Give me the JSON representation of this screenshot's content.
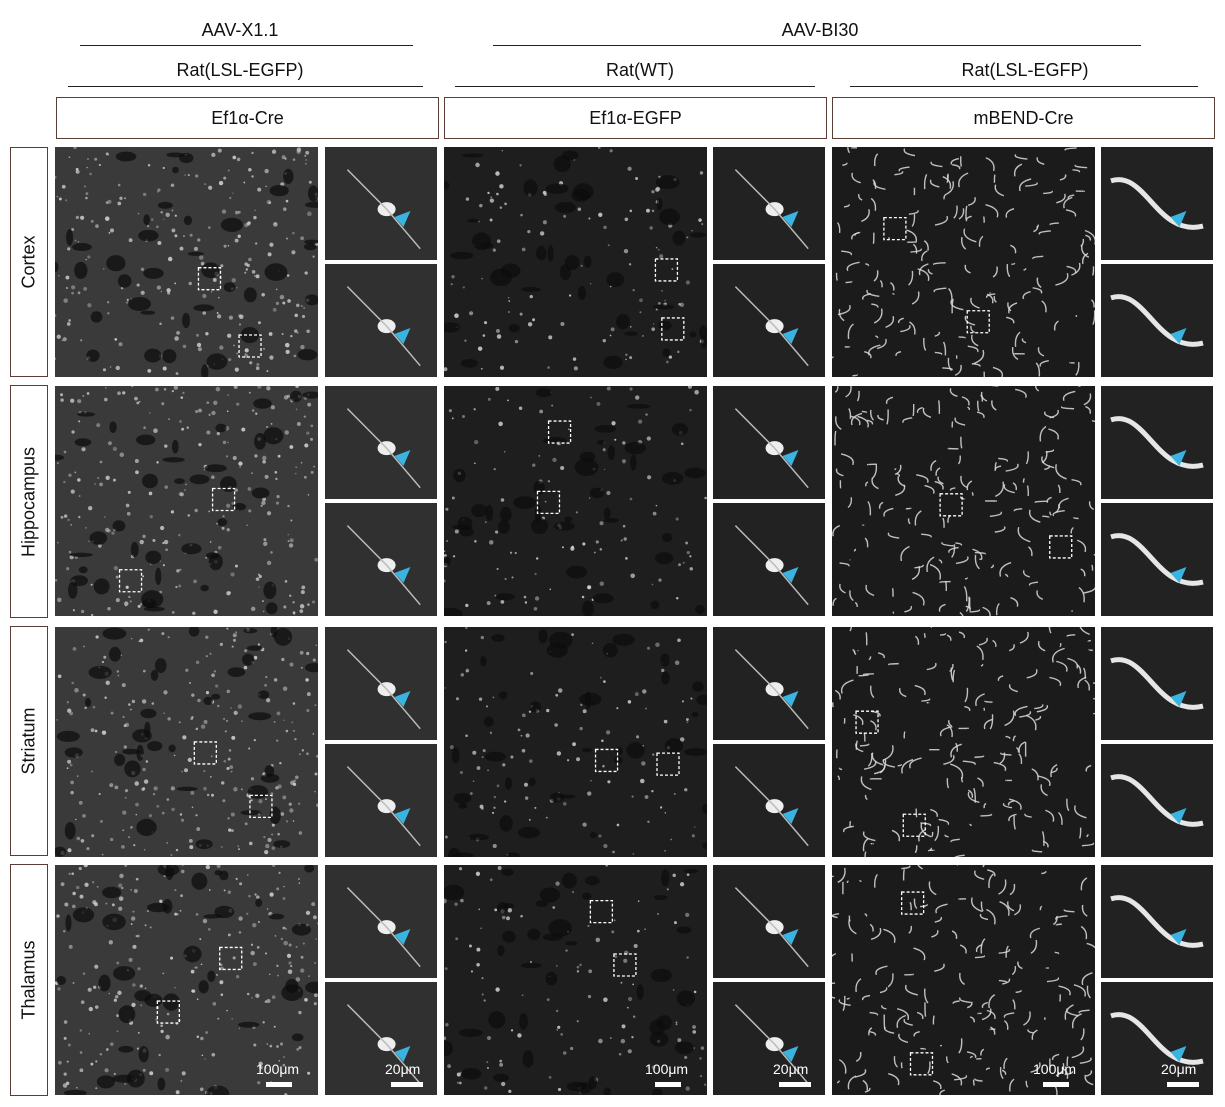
{
  "header": {
    "virus_left": "AAV-X1.1",
    "virus_right": "AAV-BI30",
    "strain_1": "Rat(LSL-EGFP)",
    "strain_2": "Rat(WT)",
    "strain_3": "Rat(LSL-EGFP)",
    "construct_1": "Ef1α-Cre",
    "construct_2": "Ef1α-EGFP",
    "construct_3": "mBEND-Cre"
  },
  "rows": [
    "Cortex",
    "Hippocampus",
    "Striatum",
    "Thalamus"
  ],
  "scale_bars": {
    "overview": "100μm",
    "inset": "20μm"
  },
  "colors": {
    "background": "#ffffff",
    "panel": "#141414",
    "signal": "#e8e8e8",
    "arrowhead": "#3bb3e0",
    "box_border": "#5a3e36"
  }
}
